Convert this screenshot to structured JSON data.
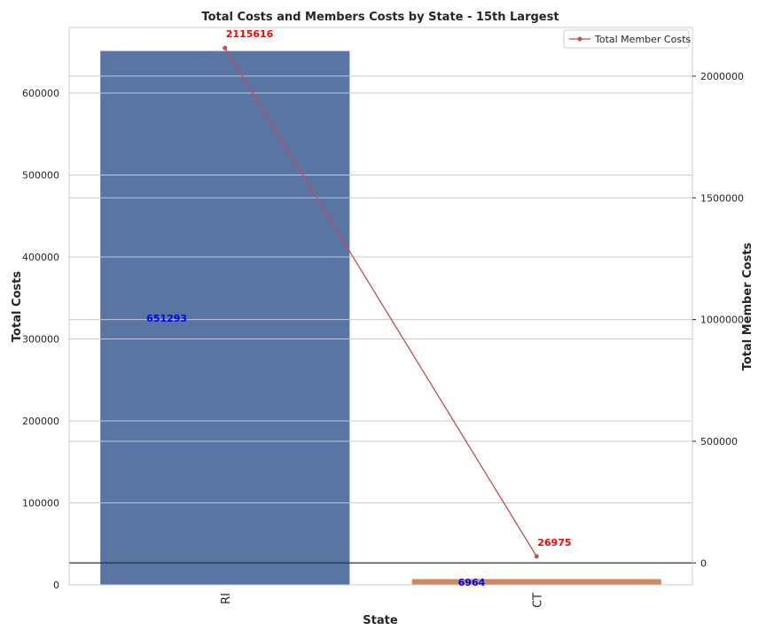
{
  "chart_data": {
    "type": "bar",
    "title": "Total Costs and Members Costs by State - 15th Largest",
    "xlabel": "State",
    "ylabel": "Total Costs",
    "y2label": "Total Member Costs",
    "categories": [
      "RI",
      "CT"
    ],
    "bar_colors": [
      "#5975a4",
      "#cc8963"
    ],
    "line_color": "#c44e52",
    "series": [
      {
        "values": [
          651293,
          6964
        ]
      },
      {
        "name": "Total Member Costs",
        "values": [
          2115616,
          26975
        ],
        "axis": "right",
        "type": "line"
      }
    ],
    "ylim": [
      0,
      680000
    ],
    "y2lim": [
      -90000,
      2200000
    ],
    "yticks": [
      0,
      100000,
      200000,
      300000,
      400000,
      500000,
      600000
    ],
    "y2ticks": [
      0,
      500000,
      1000000,
      1500000,
      2000000
    ],
    "grid": true,
    "legend": "top-right",
    "data_labels": {
      "bars": [
        "651293",
        "6964"
      ],
      "line": [
        "2115616",
        "26975"
      ]
    }
  }
}
